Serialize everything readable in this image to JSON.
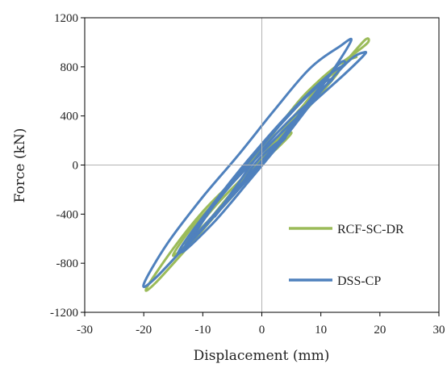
{
  "chart_data": {
    "type": "line",
    "title": "",
    "xlabel": "Displacement (mm)",
    "ylabel": "Force (kN)",
    "xlim": [
      -30,
      30
    ],
    "ylim": [
      -1200,
      1200
    ],
    "xticks": [
      -30,
      -20,
      -10,
      0,
      10,
      20,
      30
    ],
    "yticks": [
      -1200,
      -800,
      -400,
      0,
      400,
      800,
      1200
    ],
    "xtick_labels": [
      "-30",
      "-20",
      "-10",
      "0",
      "10",
      "20",
      "30"
    ],
    "ytick_labels": [
      "-1200",
      "-800",
      "-400",
      "0",
      "400",
      "800",
      "1200"
    ],
    "grid": false,
    "zero_lines": true,
    "legend_position": "lower-right",
    "series": [
      {
        "name": "RCF-SC-DR",
        "color": "#9bbb59",
        "loops": [
          [
            [
              -5,
              -250
            ],
            [
              -2,
              -60
            ],
            [
              2,
              110
            ],
            [
              5,
              260
            ],
            [
              3,
              220
            ],
            [
              0,
              60
            ],
            [
              -3,
              -110
            ],
            [
              -5,
              -250
            ]
          ],
          [
            [
              -9,
              -460
            ],
            [
              -5,
              -220
            ],
            [
              0,
              40
            ],
            [
              4,
              250
            ],
            [
              9,
              560
            ],
            [
              6,
              430
            ],
            [
              1,
              120
            ],
            [
              -4,
              -200
            ],
            [
              -9,
              -460
            ]
          ],
          [
            [
              -13,
              -640
            ],
            [
              -8,
              -400
            ],
            [
              -2,
              -80
            ],
            [
              3,
              210
            ],
            [
              9,
              530
            ],
            [
              13,
              760
            ],
            [
              10,
              660
            ],
            [
              4,
              300
            ],
            [
              -2,
              -40
            ],
            [
              -8,
              -340
            ],
            [
              -13,
              -640
            ]
          ],
          [
            [
              -15,
              -740
            ],
            [
              -10,
              -520
            ],
            [
              -4,
              -180
            ],
            [
              2,
              160
            ],
            [
              7,
              450
            ],
            [
              12,
              780
            ],
            [
              16,
              880
            ],
            [
              13,
              820
            ],
            [
              7,
              560
            ],
            [
              1,
              200
            ],
            [
              -6,
              -200
            ],
            [
              -12,
              -520
            ],
            [
              -15,
              -740
            ]
          ],
          [
            [
              -19.5,
              -1000
            ],
            [
              -18,
              -960
            ],
            [
              -12,
              -640
            ],
            [
              -5,
              -250
            ],
            [
              2,
              130
            ],
            [
              8,
              480
            ],
            [
              14,
              830
            ],
            [
              17.5,
              1020
            ],
            [
              18,
              1000
            ],
            [
              16,
              920
            ],
            [
              10,
              700
            ],
            [
              3,
              330
            ],
            [
              -4,
              -80
            ],
            [
              -10,
              -380
            ],
            [
              -15,
              -680
            ],
            [
              -19.5,
              -1000
            ]
          ]
        ]
      },
      {
        "name": "DSS-CP",
        "color": "#4f81bd",
        "loops": [
          [
            [
              -4,
              -200
            ],
            [
              -1,
              -20
            ],
            [
              2,
              130
            ],
            [
              4,
              220
            ],
            [
              2,
              160
            ],
            [
              -1,
              20
            ],
            [
              -3,
              -120
            ],
            [
              -4,
              -200
            ]
          ],
          [
            [
              -8,
              -420
            ],
            [
              -4,
              -180
            ],
            [
              1,
              80
            ],
            [
              5,
              300
            ],
            [
              8,
              500
            ],
            [
              5,
              380
            ],
            [
              0,
              120
            ],
            [
              -4,
              -150
            ],
            [
              -8,
              -420
            ]
          ],
          [
            [
              -12,
              -620
            ],
            [
              -7,
              -360
            ],
            [
              -1,
              -40
            ],
            [
              4,
              240
            ],
            [
              9,
              560
            ],
            [
              12,
              700
            ],
            [
              9,
              620
            ],
            [
              3,
              320
            ],
            [
              -3,
              -20
            ],
            [
              -8,
              -320
            ],
            [
              -12,
              -620
            ]
          ],
          [
            [
              -14,
              -720
            ],
            [
              -10,
              -520
            ],
            [
              -3,
              -140
            ],
            [
              3,
              200
            ],
            [
              8,
              520
            ],
            [
              13,
              820
            ],
            [
              14,
              820
            ],
            [
              11,
              720
            ],
            [
              5,
              440
            ],
            [
              -2,
              60
            ],
            [
              -8,
              -300
            ],
            [
              -13,
              -620
            ],
            [
              -14,
              -720
            ]
          ],
          [
            [
              -20,
              -970
            ],
            [
              -18,
              -920
            ],
            [
              -11,
              -560
            ],
            [
              -4,
              -180
            ],
            [
              3,
              200
            ],
            [
              9,
              560
            ],
            [
              15,
              1000
            ],
            [
              13,
              960
            ],
            [
              8,
              780
            ],
            [
              2,
              440
            ],
            [
              -4,
              80
            ],
            [
              -10,
              -260
            ],
            [
              -16,
              -640
            ],
            [
              -20,
              -970
            ]
          ],
          [
            [
              -13.5,
              -710
            ],
            [
              -8,
              -460
            ],
            [
              -2,
              -120
            ],
            [
              4,
              230
            ],
            [
              10,
              600
            ],
            [
              15,
              860
            ],
            [
              17.5,
              920
            ],
            [
              17,
              880
            ],
            [
              14,
              740
            ],
            [
              8,
              480
            ],
            [
              2,
              200
            ],
            [
              -5,
              -150
            ],
            [
              -10,
              -450
            ],
            [
              -13.5,
              -710
            ]
          ]
        ]
      }
    ]
  }
}
